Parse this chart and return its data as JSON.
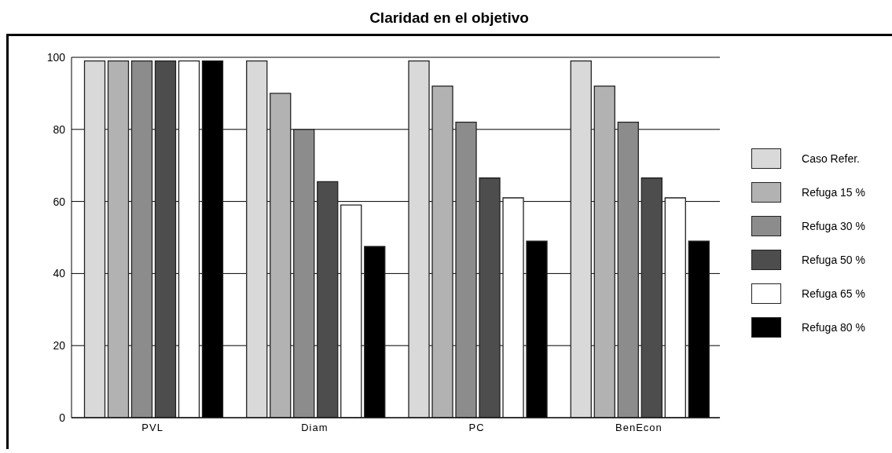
{
  "chart_data": {
    "type": "bar",
    "title": "Claridad en el objetivo",
    "categories": [
      "PVL",
      "Diam",
      "PC",
      "BenEcon"
    ],
    "series": [
      {
        "name": "Caso Refer.",
        "color": "#d9d9d9",
        "values": [
          99,
          99,
          99,
          99
        ]
      },
      {
        "name": "Refuga 15 %",
        "color": "#b2b2b2",
        "values": [
          99,
          90,
          92,
          92
        ]
      },
      {
        "name": "Refuga 30 %",
        "color": "#8c8c8c",
        "values": [
          99,
          80,
          82,
          82
        ]
      },
      {
        "name": "Refuga 50 %",
        "color": "#4d4d4d",
        "values": [
          99,
          65.5,
          66.5,
          66.5
        ]
      },
      {
        "name": "Refuga 65 %",
        "color": "#ffffff",
        "values": [
          99,
          59,
          61,
          61
        ]
      },
      {
        "name": "Refuga 80 %",
        "color": "#000000",
        "values": [
          99,
          47.5,
          49,
          49
        ]
      }
    ],
    "ylim": [
      0,
      100
    ],
    "yticks": [
      0,
      20,
      40,
      60,
      80,
      100
    ],
    "grid": "y",
    "legend": "right"
  }
}
